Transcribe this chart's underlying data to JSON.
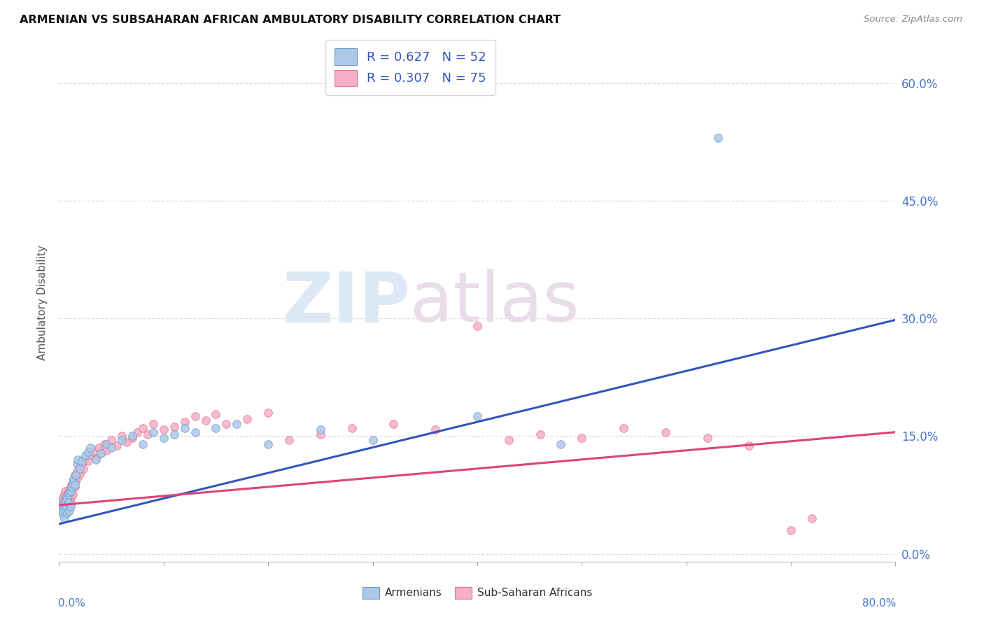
{
  "title": "ARMENIAN VS SUBSAHARAN AFRICAN AMBULATORY DISABILITY CORRELATION CHART",
  "source": "Source: ZipAtlas.com",
  "ylabel": "Ambulatory Disability",
  "y_tick_values": [
    0.0,
    0.15,
    0.3,
    0.45,
    0.6
  ],
  "xlim": [
    0.0,
    0.8
  ],
  "ylim": [
    -0.01,
    0.65
  ],
  "legend_armenian": "R = 0.627   N = 52",
  "legend_subsaharan": "R = 0.307   N = 75",
  "legend_label_armenian": "Armenians",
  "legend_label_subsaharan": "Sub-Saharan Africans",
  "color_armenian_fill": "#aec8e8",
  "color_subsaharan_fill": "#f5b0c5",
  "color_armenian_edge": "#6699cc",
  "color_subsaharan_edge": "#e07090",
  "line_color_armenian": "#3355bb",
  "line_color_subsaharan": "#dd4477",
  "tick_label_color": "#4477cc",
  "grid_color": "#dddddd",
  "watermark_text": "ZIPatlas",
  "arm_line": [
    [
      0.0,
      0.038
    ],
    [
      0.8,
      0.298
    ]
  ],
  "sub_line": [
    [
      0.0,
      0.062
    ],
    [
      0.8,
      0.155
    ]
  ],
  "armenian_scatter": [
    [
      0.001,
      0.055
    ],
    [
      0.002,
      0.06
    ],
    [
      0.003,
      0.058
    ],
    [
      0.003,
      0.062
    ],
    [
      0.004,
      0.05
    ],
    [
      0.004,
      0.055
    ],
    [
      0.005,
      0.065
    ],
    [
      0.005,
      0.045
    ],
    [
      0.006,
      0.058
    ],
    [
      0.006,
      0.068
    ],
    [
      0.007,
      0.06
    ],
    [
      0.007,
      0.072
    ],
    [
      0.008,
      0.07
    ],
    [
      0.008,
      0.052
    ],
    [
      0.009,
      0.065
    ],
    [
      0.009,
      0.075
    ],
    [
      0.01,
      0.078
    ],
    [
      0.01,
      0.055
    ],
    [
      0.011,
      0.08
    ],
    [
      0.011,
      0.06
    ],
    [
      0.012,
      0.085
    ],
    [
      0.013,
      0.09
    ],
    [
      0.014,
      0.095
    ],
    [
      0.015,
      0.088
    ],
    [
      0.016,
      0.1
    ],
    [
      0.017,
      0.115
    ],
    [
      0.018,
      0.12
    ],
    [
      0.02,
      0.108
    ],
    [
      0.022,
      0.118
    ],
    [
      0.025,
      0.125
    ],
    [
      0.028,
      0.13
    ],
    [
      0.03,
      0.135
    ],
    [
      0.035,
      0.12
    ],
    [
      0.04,
      0.128
    ],
    [
      0.045,
      0.14
    ],
    [
      0.05,
      0.135
    ],
    [
      0.06,
      0.145
    ],
    [
      0.07,
      0.15
    ],
    [
      0.08,
      0.14
    ],
    [
      0.09,
      0.155
    ],
    [
      0.1,
      0.148
    ],
    [
      0.11,
      0.152
    ],
    [
      0.12,
      0.16
    ],
    [
      0.13,
      0.155
    ],
    [
      0.15,
      0.16
    ],
    [
      0.17,
      0.165
    ],
    [
      0.2,
      0.14
    ],
    [
      0.25,
      0.158
    ],
    [
      0.3,
      0.145
    ],
    [
      0.4,
      0.175
    ],
    [
      0.48,
      0.14
    ],
    [
      0.63,
      0.53
    ]
  ],
  "subsaharan_scatter": [
    [
      0.001,
      0.06
    ],
    [
      0.002,
      0.058
    ],
    [
      0.002,
      0.065
    ],
    [
      0.003,
      0.062
    ],
    [
      0.003,
      0.068
    ],
    [
      0.004,
      0.055
    ],
    [
      0.004,
      0.072
    ],
    [
      0.005,
      0.065
    ],
    [
      0.005,
      0.075
    ],
    [
      0.006,
      0.06
    ],
    [
      0.006,
      0.08
    ],
    [
      0.007,
      0.07
    ],
    [
      0.007,
      0.058
    ],
    [
      0.008,
      0.075
    ],
    [
      0.008,
      0.065
    ],
    [
      0.009,
      0.078
    ],
    [
      0.009,
      0.062
    ],
    [
      0.01,
      0.082
    ],
    [
      0.01,
      0.068
    ],
    [
      0.011,
      0.085
    ],
    [
      0.011,
      0.072
    ],
    [
      0.012,
      0.088
    ],
    [
      0.012,
      0.065
    ],
    [
      0.013,
      0.09
    ],
    [
      0.013,
      0.075
    ],
    [
      0.014,
      0.095
    ],
    [
      0.015,
      0.085
    ],
    [
      0.015,
      0.1
    ],
    [
      0.016,
      0.092
    ],
    [
      0.017,
      0.105
    ],
    [
      0.018,
      0.098
    ],
    [
      0.019,
      0.11
    ],
    [
      0.02,
      0.102
    ],
    [
      0.022,
      0.115
    ],
    [
      0.023,
      0.108
    ],
    [
      0.025,
      0.12
    ],
    [
      0.028,
      0.118
    ],
    [
      0.03,
      0.125
    ],
    [
      0.033,
      0.13
    ],
    [
      0.035,
      0.122
    ],
    [
      0.038,
      0.135
    ],
    [
      0.04,
      0.128
    ],
    [
      0.043,
      0.14
    ],
    [
      0.045,
      0.132
    ],
    [
      0.05,
      0.145
    ],
    [
      0.055,
      0.138
    ],
    [
      0.06,
      0.15
    ],
    [
      0.065,
      0.142
    ],
    [
      0.07,
      0.148
    ],
    [
      0.075,
      0.155
    ],
    [
      0.08,
      0.16
    ],
    [
      0.085,
      0.152
    ],
    [
      0.09,
      0.165
    ],
    [
      0.1,
      0.158
    ],
    [
      0.11,
      0.162
    ],
    [
      0.12,
      0.168
    ],
    [
      0.13,
      0.175
    ],
    [
      0.14,
      0.17
    ],
    [
      0.15,
      0.178
    ],
    [
      0.16,
      0.165
    ],
    [
      0.18,
      0.172
    ],
    [
      0.2,
      0.18
    ],
    [
      0.22,
      0.145
    ],
    [
      0.25,
      0.152
    ],
    [
      0.28,
      0.16
    ],
    [
      0.32,
      0.165
    ],
    [
      0.36,
      0.158
    ],
    [
      0.4,
      0.29
    ],
    [
      0.43,
      0.145
    ],
    [
      0.46,
      0.152
    ],
    [
      0.5,
      0.148
    ],
    [
      0.54,
      0.16
    ],
    [
      0.58,
      0.155
    ],
    [
      0.62,
      0.148
    ],
    [
      0.66,
      0.138
    ],
    [
      0.7,
      0.03
    ],
    [
      0.72,
      0.045
    ]
  ]
}
